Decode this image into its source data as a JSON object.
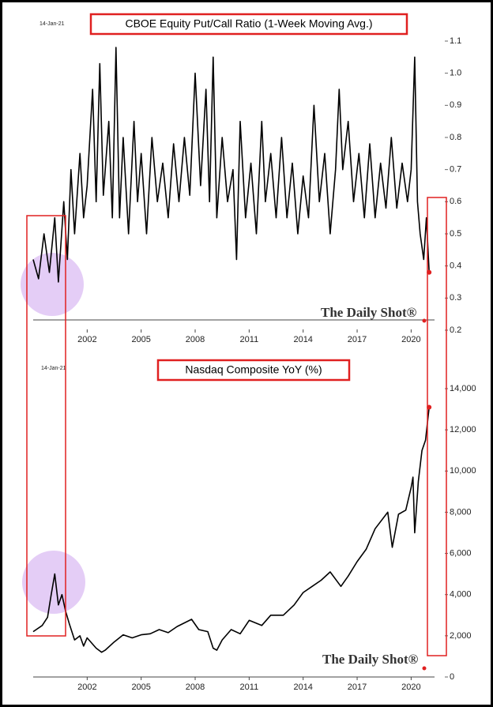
{
  "chart_data": [
    {
      "type": "line",
      "title": "CBOE Equity Put/Call Ratio (1-Week Moving Avg.)",
      "date_label": "14-Jan-21",
      "watermark": "The Daily Shot®",
      "x": [
        1999.0,
        1999.3,
        1999.6,
        1999.9,
        2000.2,
        2000.4,
        2000.7,
        2000.9,
        2001.1,
        2001.3,
        2001.6,
        2001.8,
        2002.0,
        2002.3,
        2002.5,
        2002.7,
        2002.9,
        2003.2,
        2003.4,
        2003.6,
        2003.8,
        2004.0,
        2004.3,
        2004.6,
        2004.8,
        2005.0,
        2005.3,
        2005.6,
        2005.9,
        2006.2,
        2006.5,
        2006.8,
        2007.1,
        2007.4,
        2007.7,
        2008.0,
        2008.3,
        2008.6,
        2008.8,
        2009.0,
        2009.2,
        2009.5,
        2009.8,
        2010.1,
        2010.3,
        2010.5,
        2010.8,
        2011.1,
        2011.4,
        2011.7,
        2011.9,
        2012.2,
        2012.5,
        2012.8,
        2013.1,
        2013.4,
        2013.7,
        2014.0,
        2014.3,
        2014.6,
        2014.9,
        2015.2,
        2015.5,
        2015.8,
        2016.0,
        2016.2,
        2016.5,
        2016.8,
        2017.1,
        2017.4,
        2017.7,
        2018.0,
        2018.3,
        2018.6,
        2018.9,
        2019.2,
        2019.5,
        2019.8,
        2020.0,
        2020.2,
        2020.35,
        2020.5,
        2020.7,
        2020.85,
        2021.0
      ],
      "series": [
        {
          "color": "#000000",
          "marker_color": "#e02020",
          "values": [
            0.42,
            0.36,
            0.5,
            0.38,
            0.55,
            0.35,
            0.6,
            0.42,
            0.7,
            0.5,
            0.75,
            0.55,
            0.65,
            0.95,
            0.6,
            1.03,
            0.62,
            0.85,
            0.55,
            1.08,
            0.55,
            0.8,
            0.5,
            0.85,
            0.6,
            0.75,
            0.5,
            0.8,
            0.6,
            0.72,
            0.55,
            0.78,
            0.6,
            0.8,
            0.62,
            1.0,
            0.65,
            0.95,
            0.6,
            1.05,
            0.55,
            0.8,
            0.6,
            0.7,
            0.42,
            0.85,
            0.55,
            0.72,
            0.5,
            0.85,
            0.6,
            0.75,
            0.55,
            0.8,
            0.55,
            0.72,
            0.5,
            0.68,
            0.55,
            0.9,
            0.6,
            0.75,
            0.5,
            0.7,
            0.95,
            0.7,
            0.85,
            0.6,
            0.75,
            0.55,
            0.78,
            0.55,
            0.72,
            0.58,
            0.8,
            0.58,
            0.72,
            0.6,
            0.7,
            1.05,
            0.6,
            0.5,
            0.42,
            0.55,
            0.38
          ]
        }
      ],
      "xlim": [
        1999.0,
        2021.3
      ],
      "xticks": [
        2002,
        2005,
        2008,
        2011,
        2014,
        2017,
        2020
      ],
      "ylim": [
        0.2,
        1.1
      ],
      "yticks": [
        0.2,
        0.3,
        0.4,
        0.5,
        0.6,
        0.7,
        0.8,
        0.9,
        {
          "value": 1,
          "label": "1.0"
        },
        1.1
      ]
    },
    {
      "type": "line",
      "title": "Nasdaq Composite YoY (%)",
      "date_label": "14-Jan-21",
      "watermark": "The Daily Shot®",
      "x": [
        1999.0,
        1999.5,
        1999.8,
        2000.0,
        2000.2,
        2000.4,
        2000.6,
        2000.8,
        2001.0,
        2001.3,
        2001.6,
        2001.8,
        2002.0,
        2002.5,
        2002.8,
        2003.0,
        2003.5,
        2004.0,
        2004.5,
        2005.0,
        2005.5,
        2006.0,
        2006.5,
        2007.0,
        2007.8,
        2008.2,
        2008.7,
        2009.0,
        2009.2,
        2009.5,
        2010.0,
        2010.5,
        2011.0,
        2011.7,
        2012.2,
        2012.9,
        2013.5,
        2014.0,
        2014.5,
        2015.0,
        2015.5,
        2016.1,
        2016.5,
        2017.0,
        2017.5,
        2018.0,
        2018.7,
        2018.95,
        2019.3,
        2019.7,
        2020.0,
        2020.1,
        2020.2,
        2020.4,
        2020.6,
        2020.8,
        2021.0
      ],
      "series": [
        {
          "color": "#000000",
          "marker_color": "#e02020",
          "values": [
            2200,
            2500,
            2900,
            4000,
            5000,
            3500,
            4000,
            3200,
            2600,
            1800,
            2000,
            1500,
            1900,
            1400,
            1200,
            1300,
            1700,
            2050,
            1900,
            2050,
            2100,
            2300,
            2150,
            2450,
            2800,
            2300,
            2200,
            1400,
            1300,
            1800,
            2300,
            2100,
            2750,
            2500,
            3000,
            3000,
            3500,
            4100,
            4400,
            4700,
            5100,
            4400,
            4900,
            5600,
            6200,
            7200,
            8000,
            6300,
            7900,
            8100,
            9200,
            9700,
            7000,
            9500,
            11000,
            11500,
            13100
          ]
        }
      ],
      "xlim": [
        1999.0,
        2021.3
      ],
      "xticks": [
        2002,
        2005,
        2008,
        2011,
        2014,
        2017,
        2020
      ],
      "ylim": [
        0,
        14000
      ],
      "yticks": [
        0,
        {
          "value": 2000,
          "label": "2,000"
        },
        {
          "value": 4000,
          "label": "4,000"
        },
        {
          "value": 6000,
          "label": "6,000"
        },
        {
          "value": 8000,
          "label": "8,000"
        },
        {
          "value": 10000,
          "label": "10,000"
        },
        {
          "value": 12000,
          "label": "12,000"
        },
        {
          "value": 14000,
          "label": "14,000"
        }
      ]
    }
  ]
}
